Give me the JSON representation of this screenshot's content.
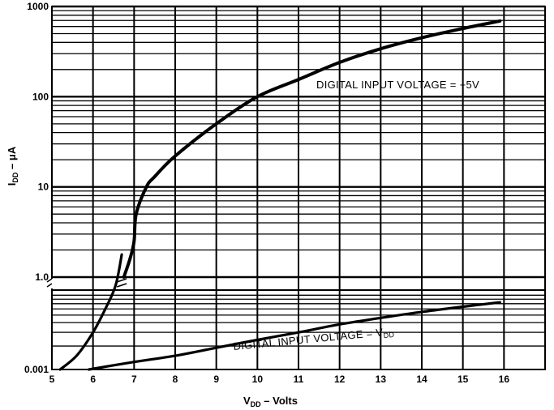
{
  "chart_data": {
    "type": "line",
    "title": "",
    "x_axis": {
      "label_main": "V",
      "label_sub": "DD",
      "label_tail": " – Volts",
      "ticks": [
        "5",
        "6",
        "7",
        "8",
        "9",
        "10",
        "11",
        "12",
        "13",
        "14",
        "15",
        "16"
      ],
      "range": [
        5,
        17
      ]
    },
    "y_axis": {
      "label_main": "I",
      "label_sub": "DD",
      "label_tail": " – μA",
      "scale": "log, broken axis",
      "upper_segment": {
        "range": [
          1.0,
          1000
        ],
        "ticks": [
          "1.0",
          "10",
          "100",
          "1000"
        ]
      },
      "lower_segment": {
        "ticks": [
          "0.001"
        ]
      },
      "break": "zigzag between 1.0 and 0.001"
    },
    "grid": true,
    "series": [
      {
        "name": "DIGITAL INPUT VOLTAGE = +5V",
        "lower_points": [
          [
            5.2,
            0.001
          ],
          [
            5.6,
            0.0015
          ],
          [
            6.0,
            0.003
          ],
          [
            6.3,
            0.006
          ],
          [
            6.55,
            0.012
          ],
          [
            6.7,
            0.03
          ]
        ],
        "upper_points": [
          [
            6.75,
            1.0
          ],
          [
            6.9,
            1.6
          ],
          [
            7.0,
            2.5
          ],
          [
            7.05,
            5.0
          ],
          [
            7.3,
            10
          ],
          [
            7.5,
            13
          ],
          [
            8.0,
            22
          ],
          [
            9.0,
            50
          ],
          [
            10.0,
            100
          ],
          [
            11.0,
            155
          ],
          [
            12.0,
            240
          ],
          [
            13.0,
            340
          ],
          [
            14.0,
            450
          ],
          [
            15.0,
            570
          ],
          [
            15.9,
            690
          ]
        ]
      },
      {
        "name_main": "DIGITAL INPUT VOLTAGE = V",
        "name_sub": "DD",
        "lower_points": [
          [
            5.9,
            0.001
          ],
          [
            7,
            0.00125
          ],
          [
            8,
            0.0015
          ],
          [
            9,
            0.0019
          ],
          [
            10,
            0.0024
          ],
          [
            11,
            0.003
          ],
          [
            12,
            0.0038
          ],
          [
            13,
            0.0046
          ],
          [
            14,
            0.0055
          ],
          [
            15,
            0.0064
          ],
          [
            15.9,
            0.0073
          ]
        ]
      }
    ]
  }
}
